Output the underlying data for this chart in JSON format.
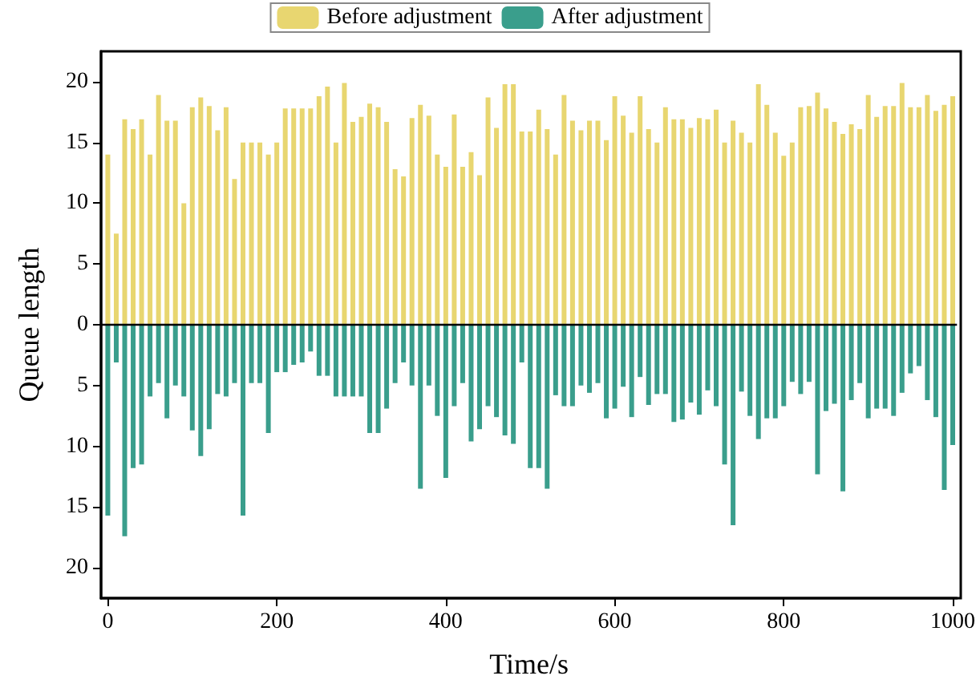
{
  "chart_data": {
    "type": "bar",
    "xlabel": "Time/s",
    "ylabel": "Queue length",
    "x": [
      0,
      10,
      20,
      30,
      40,
      50,
      60,
      70,
      80,
      90,
      100,
      110,
      120,
      130,
      140,
      150,
      160,
      170,
      180,
      190,
      200,
      210,
      220,
      230,
      240,
      250,
      260,
      270,
      280,
      290,
      300,
      310,
      320,
      330,
      340,
      350,
      360,
      370,
      380,
      390,
      400,
      410,
      420,
      430,
      440,
      450,
      460,
      470,
      480,
      490,
      500,
      510,
      520,
      530,
      540,
      550,
      560,
      570,
      580,
      590,
      600,
      610,
      620,
      630,
      640,
      650,
      660,
      670,
      680,
      690,
      700,
      710,
      720,
      730,
      740,
      750,
      760,
      770,
      780,
      790,
      800,
      810,
      820,
      830,
      840,
      850,
      860,
      870,
      880,
      890,
      900,
      910,
      920,
      930,
      940,
      950,
      960,
      970,
      980,
      990,
      1000
    ],
    "series": [
      {
        "name": "Before adjustment",
        "color": "#e8d670",
        "values": [
          14.0,
          7.5,
          16.9,
          16.1,
          16.9,
          14.0,
          18.9,
          16.8,
          16.8,
          10.0,
          17.9,
          18.7,
          18.0,
          16.0,
          17.9,
          12.0,
          15.0,
          15.0,
          15.0,
          14.0,
          15.0,
          17.8,
          17.8,
          17.8,
          17.8,
          18.8,
          19.6,
          15.0,
          19.9,
          16.7,
          17.1,
          18.2,
          17.9,
          16.7,
          12.8,
          12.2,
          17.0,
          18.1,
          17.2,
          14.0,
          13.0,
          17.3,
          13.0,
          14.2,
          12.3,
          18.7,
          16.2,
          19.8,
          19.8,
          15.9,
          15.9,
          17.7,
          16.1,
          14.0,
          18.9,
          16.8,
          16.0,
          16.8,
          16.8,
          15.2,
          18.8,
          17.2,
          15.8,
          18.8,
          16.1,
          15.0,
          17.9,
          16.9,
          16.9,
          16.2,
          17.0,
          16.9,
          17.7,
          15.0,
          16.8,
          15.8,
          15.0,
          19.8,
          18.1,
          15.8,
          13.9,
          15.0,
          17.9,
          18.0,
          19.1,
          17.8,
          16.7,
          15.7,
          16.5,
          16.1,
          18.9,
          17.1,
          18.0,
          18.0,
          19.9,
          17.9,
          17.9,
          18.9,
          17.6,
          18.1,
          18.8
        ]
      },
      {
        "name": "After adjustment",
        "color": "#3a9e8c",
        "values": [
          -15.7,
          -3.1,
          -17.4,
          -11.8,
          -11.5,
          -5.9,
          -4.8,
          -7.7,
          -5.0,
          -5.9,
          -8.7,
          -10.8,
          -8.6,
          -5.7,
          -5.9,
          -4.8,
          -15.7,
          -4.8,
          -4.8,
          -8.9,
          -3.9,
          -3.9,
          -3.3,
          -3.1,
          -2.2,
          -4.2,
          -4.2,
          -5.9,
          -5.9,
          -5.9,
          -5.9,
          -8.9,
          -8.9,
          -6.9,
          -4.8,
          -3.1,
          -5.0,
          -13.5,
          -5.0,
          -7.5,
          -12.6,
          -6.7,
          -4.8,
          -9.6,
          -8.6,
          -6.7,
          -7.6,
          -9.1,
          -9.8,
          -3.1,
          -11.8,
          -11.8,
          -13.5,
          -5.8,
          -6.7,
          -6.7,
          -5.0,
          -5.6,
          -4.8,
          -7.7,
          -6.9,
          -5.1,
          -7.6,
          -4.3,
          -6.6,
          -5.7,
          -5.7,
          -8.0,
          -7.8,
          -6.4,
          -7.4,
          -5.4,
          -6.7,
          -11.5,
          -16.5,
          -5.5,
          -7.5,
          -9.4,
          -7.7,
          -7.7,
          -6.7,
          -4.7,
          -5.7,
          -4.7,
          -12.3,
          -7.1,
          -6.5,
          -13.7,
          -6.2,
          -4.8,
          -7.7,
          -6.9,
          -6.9,
          -7.5,
          -5.6,
          -4.0,
          -3.4,
          -6.2,
          -7.6,
          -13.6,
          -9.9
        ]
      }
    ],
    "xlim": [
      -8,
      1005
    ],
    "xticks": [
      0,
      200,
      400,
      600,
      800,
      1000
    ],
    "ylim": [
      -22.5,
      22.5
    ],
    "yticks": [
      {
        "value": -20,
        "label": "20"
      },
      {
        "value": -15,
        "label": "15"
      },
      {
        "value": -10,
        "label": "10"
      },
      {
        "value": -5,
        "label": "5"
      },
      0,
      5,
      10,
      15,
      20
    ],
    "ref_lines": [
      {
        "axis": "y",
        "value": 0,
        "color": "#000000",
        "line_style": "solid"
      }
    ],
    "stacked": true,
    "legend": "top",
    "grid": false
  }
}
